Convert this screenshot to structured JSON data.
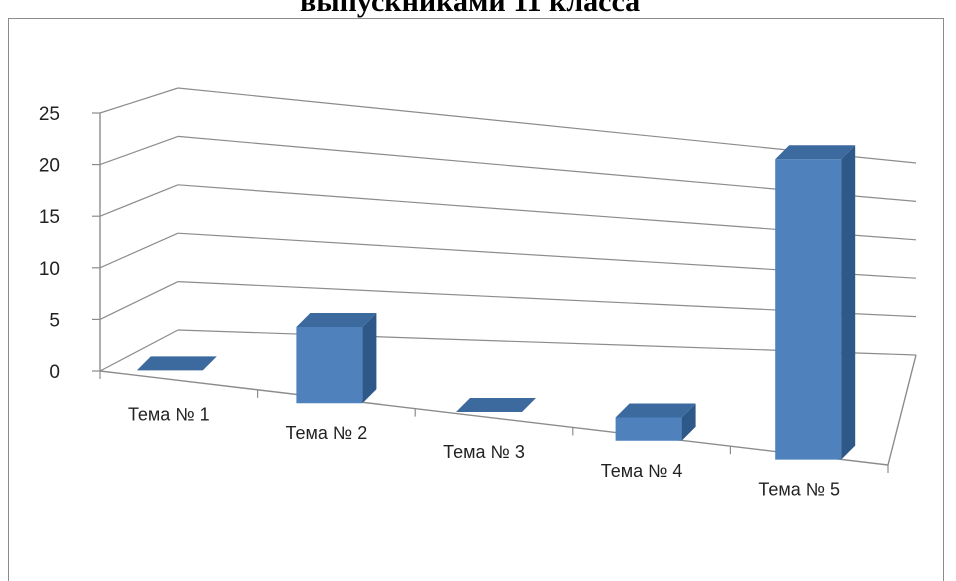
{
  "chart_data": {
    "type": "bar",
    "title": "выпускниками 11 класса",
    "categories": [
      "Тема № 1",
      "Тема № 2",
      "Тема № 3",
      "Тема № 4",
      "Тема № 5"
    ],
    "series": [
      {
        "values": [
          0,
          7,
          0,
          2,
          25
        ]
      }
    ],
    "ylim": [
      0,
      25
    ],
    "yticks": [
      0,
      5,
      10,
      15,
      20,
      25
    ],
    "grid": true,
    "style": "3d-column",
    "colors": {
      "bar_front": "#4f81bd",
      "bar_top": "#3d6a9e",
      "bar_side": "#2e5888",
      "grid": "#8c8c8c"
    }
  }
}
